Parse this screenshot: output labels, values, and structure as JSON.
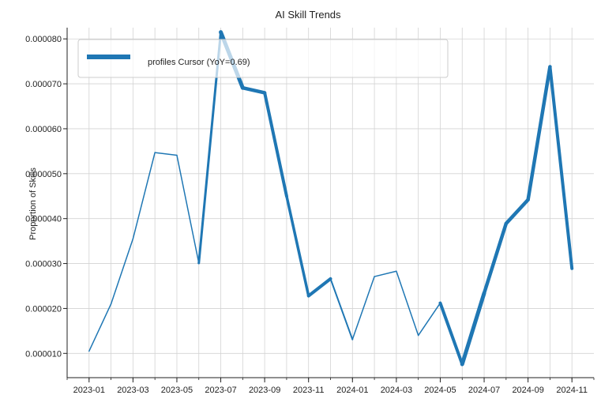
{
  "chart_data": {
    "type": "line",
    "title": "AI Skill Trends",
    "xlabel": "",
    "ylabel": "Proportion of Skills",
    "legend": {
      "placement": "top-left",
      "label": "profiles Cursor (YoY=0.69)"
    },
    "grid": true,
    "xlim": [
      "2022-12",
      "2024-12"
    ],
    "ylim": [
      4.6e-06,
      8.25e-05
    ],
    "x_ticks": [
      "2023-01",
      "2023-03",
      "2023-05",
      "2023-07",
      "2023-09",
      "2023-11",
      "2024-01",
      "2024-03",
      "2024-05",
      "2024-07",
      "2024-09",
      "2024-11"
    ],
    "y_ticks": [
      "0.000010",
      "0.000020",
      "0.000030",
      "0.000040",
      "0.000050",
      "0.000060",
      "0.000070",
      "0.000080"
    ],
    "series": [
      {
        "name": "profiles Cursor (YoY=0.69)",
        "color": "#1f77b4",
        "x": [
          "2023-01",
          "2023-02",
          "2023-03",
          "2023-04",
          "2023-05",
          "2023-06",
          "2023-07",
          "2023-08",
          "2023-09",
          "2023-10",
          "2023-11",
          "2023-12",
          "2024-01",
          "2024-02",
          "2024-03",
          "2024-04",
          "2024-05",
          "2024-06",
          "2024-07",
          "2024-08",
          "2024-09",
          "2024-10",
          "2024-11"
        ],
        "values": [
          1.05e-05,
          2.1e-05,
          3.55e-05,
          5.47e-05,
          5.41e-05,
          3.01e-05,
          8.15e-05,
          6.91e-05,
          6.8e-05,
          4.5e-05,
          2.28e-05,
          2.66e-05,
          1.31e-05,
          2.71e-05,
          2.83e-05,
          1.4e-05,
          2.12e-05,
          7.6e-06,
          2.34e-05,
          3.89e-05,
          4.42e-05,
          7.38e-05,
          2.89e-05
        ]
      }
    ]
  }
}
